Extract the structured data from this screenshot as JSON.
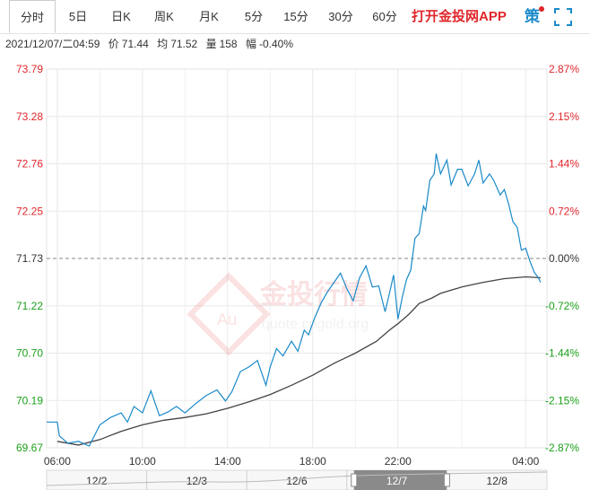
{
  "tabs": [
    {
      "label": "分时",
      "active": true
    },
    {
      "label": "5日"
    },
    {
      "label": "日K"
    },
    {
      "label": "周K"
    },
    {
      "label": "月K"
    },
    {
      "label": "5分"
    },
    {
      "label": "15分"
    },
    {
      "label": "30分"
    },
    {
      "label": "60分"
    }
  ],
  "promo_label": "打开金投网APP",
  "icons": {
    "strategy": "策",
    "strategy_icon": "strategy-icon",
    "fullscreen_icon": "fullscreen-icon"
  },
  "info": {
    "datetime": "2021/12/07/二04:59",
    "price_label": "价",
    "price": "71.44",
    "avg_label": "均",
    "avg": "71.52",
    "vol_label": "量",
    "vol": "158",
    "chg_label": "幅",
    "chg": "-0.40%"
  },
  "watermark": {
    "cn": "金投行情",
    "en": "quote.cngold.org",
    "logo": "Au"
  },
  "colors": {
    "up": "#e0262b",
    "down": "#1ba01b",
    "price_line": "#1a8ac9",
    "avg_line": "#444444",
    "ref_line": "#888888"
  },
  "chart_data": {
    "type": "line",
    "title": "",
    "ylim": [
      69.67,
      73.79
    ],
    "reference_price": 71.73,
    "y_ticks_left": [
      "73.79",
      "73.28",
      "72.76",
      "72.25",
      "71.73",
      "71.22",
      "70.70",
      "70.19",
      "69.67"
    ],
    "y_ticks_right": [
      "2.87%",
      "2.15%",
      "1.44%",
      "0.72%",
      "0.00%",
      "-0.72%",
      "-1.44%",
      "-2.15%",
      "-2.87%"
    ],
    "x_ticks": [
      "06:00",
      "10:00",
      "14:00",
      "18:00",
      "22:00",
      "04:00"
    ],
    "x_tick_hours": [
      0,
      4,
      8,
      12,
      16,
      22
    ],
    "x_range_hours": [
      -0.5,
      23
    ],
    "series": [
      {
        "role": "price",
        "points": [
          [
            -0.5,
            69.95
          ],
          [
            0.0,
            69.95
          ],
          [
            0.1,
            69.8
          ],
          [
            0.5,
            69.72
          ],
          [
            1.0,
            69.74
          ],
          [
            1.5,
            69.69
          ],
          [
            2.0,
            69.92
          ],
          [
            2.5,
            70.0
          ],
          [
            3.0,
            70.05
          ],
          [
            3.3,
            69.95
          ],
          [
            3.6,
            70.12
          ],
          [
            4.0,
            70.05
          ],
          [
            4.4,
            70.29
          ],
          [
            4.8,
            70.02
          ],
          [
            5.2,
            70.06
          ],
          [
            5.6,
            70.12
          ],
          [
            6.0,
            70.05
          ],
          [
            6.5,
            70.15
          ],
          [
            7.0,
            70.24
          ],
          [
            7.5,
            70.3
          ],
          [
            7.9,
            70.18
          ],
          [
            8.2,
            70.28
          ],
          [
            8.6,
            70.5
          ],
          [
            9.0,
            70.55
          ],
          [
            9.4,
            70.62
          ],
          [
            9.8,
            70.35
          ],
          [
            10.0,
            70.55
          ],
          [
            10.3,
            70.75
          ],
          [
            10.6,
            70.67
          ],
          [
            11.0,
            70.83
          ],
          [
            11.3,
            70.72
          ],
          [
            11.6,
            70.95
          ],
          [
            11.8,
            70.9
          ],
          [
            12.1,
            71.09
          ],
          [
            12.4,
            71.25
          ],
          [
            12.7,
            71.37
          ],
          [
            13.0,
            71.47
          ],
          [
            13.3,
            71.57
          ],
          [
            13.6,
            71.4
          ],
          [
            13.9,
            71.27
          ],
          [
            14.2,
            71.52
          ],
          [
            14.5,
            71.65
          ],
          [
            14.8,
            71.42
          ],
          [
            15.1,
            71.43
          ],
          [
            15.4,
            71.15
          ],
          [
            15.6,
            71.35
          ],
          [
            15.8,
            71.55
          ],
          [
            16.0,
            71.07
          ],
          [
            16.2,
            71.3
          ],
          [
            16.4,
            71.5
          ],
          [
            16.6,
            71.6
          ],
          [
            16.8,
            71.95
          ],
          [
            17.0,
            72.0
          ],
          [
            17.2,
            72.3
          ],
          [
            17.3,
            72.25
          ],
          [
            17.5,
            72.58
          ],
          [
            17.7,
            72.65
          ],
          [
            17.8,
            72.87
          ],
          [
            18.0,
            72.65
          ],
          [
            18.3,
            72.8
          ],
          [
            18.5,
            72.53
          ],
          [
            18.8,
            72.7
          ],
          [
            19.0,
            72.7
          ],
          [
            19.3,
            72.52
          ],
          [
            19.6,
            72.65
          ],
          [
            19.8,
            72.8
          ],
          [
            20.0,
            72.55
          ],
          [
            20.3,
            72.65
          ],
          [
            20.5,
            72.58
          ],
          [
            20.8,
            72.42
          ],
          [
            21.0,
            72.48
          ],
          [
            21.2,
            72.32
          ],
          [
            21.4,
            72.13
          ],
          [
            21.6,
            72.07
          ],
          [
            21.8,
            71.82
          ],
          [
            22.0,
            71.84
          ],
          [
            22.2,
            71.7
          ],
          [
            22.4,
            71.58
          ],
          [
            22.6,
            71.52
          ],
          [
            22.7,
            71.47
          ]
        ]
      },
      {
        "role": "average",
        "points": [
          [
            0.0,
            69.74
          ],
          [
            1.0,
            69.7
          ],
          [
            2.0,
            69.76
          ],
          [
            3.0,
            69.85
          ],
          [
            4.0,
            69.92
          ],
          [
            5.0,
            69.97
          ],
          [
            6.0,
            70.0
          ],
          [
            7.0,
            70.04
          ],
          [
            8.0,
            70.1
          ],
          [
            9.0,
            70.17
          ],
          [
            10.0,
            70.25
          ],
          [
            11.0,
            70.35
          ],
          [
            12.0,
            70.46
          ],
          [
            13.0,
            70.59
          ],
          [
            14.0,
            70.7
          ],
          [
            15.0,
            70.83
          ],
          [
            15.6,
            70.95
          ],
          [
            16.0,
            71.02
          ],
          [
            16.5,
            71.12
          ],
          [
            17.0,
            71.24
          ],
          [
            17.6,
            71.3
          ],
          [
            18.0,
            71.35
          ],
          [
            19.0,
            71.42
          ],
          [
            20.0,
            71.47
          ],
          [
            21.0,
            71.51
          ],
          [
            22.0,
            71.53
          ],
          [
            22.7,
            71.52
          ]
        ]
      }
    ]
  },
  "navigator": {
    "dates": [
      "12/2",
      "12/3",
      "12/6",
      "12/7",
      "12/8"
    ],
    "selected_date": "12/7"
  }
}
